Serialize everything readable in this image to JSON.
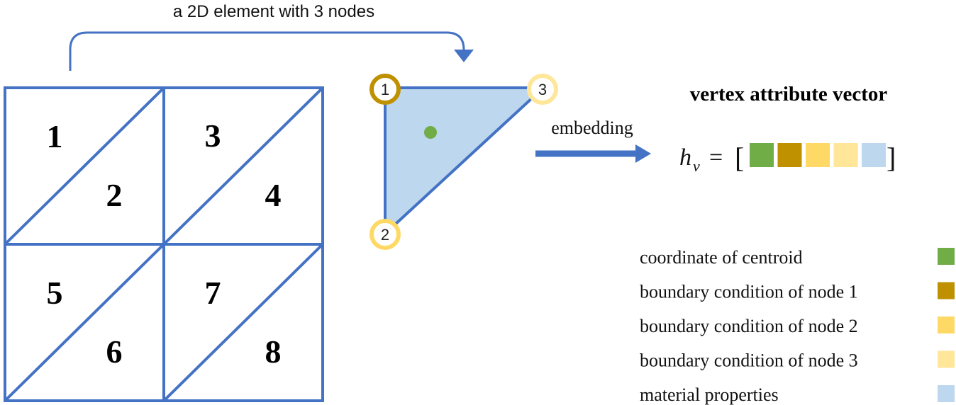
{
  "top_label": "a 2D element with 3 nodes",
  "mesh": {
    "elements": [
      "1",
      "2",
      "3",
      "4",
      "5",
      "6",
      "7",
      "8"
    ]
  },
  "triangle": {
    "nodes": [
      "1",
      "2",
      "3"
    ]
  },
  "embedding_label": "embedding",
  "vector_title": "vertex attribute vector",
  "formula": {
    "symbol": "h",
    "subscript": "v",
    "equals": "=",
    "open_bracket": "[",
    "close_bracket": "]"
  },
  "legend": [
    {
      "label": "coordinate of centroid",
      "color": "#70ad47"
    },
    {
      "label": "boundary condition of node 1",
      "color": "#bf9000"
    },
    {
      "label": "boundary condition of node 2",
      "color": "#ffd966"
    },
    {
      "label": "boundary condition of node 3",
      "color": "#ffe699"
    },
    {
      "label": "material properties",
      "color": "#bdd7ee"
    }
  ],
  "colors": {
    "line": "#4472c4",
    "triangle_fill": "#bdd7ee",
    "centroid": "#70ad47",
    "node1_ring": "#bf9000",
    "node_ring": "#ffd966"
  }
}
